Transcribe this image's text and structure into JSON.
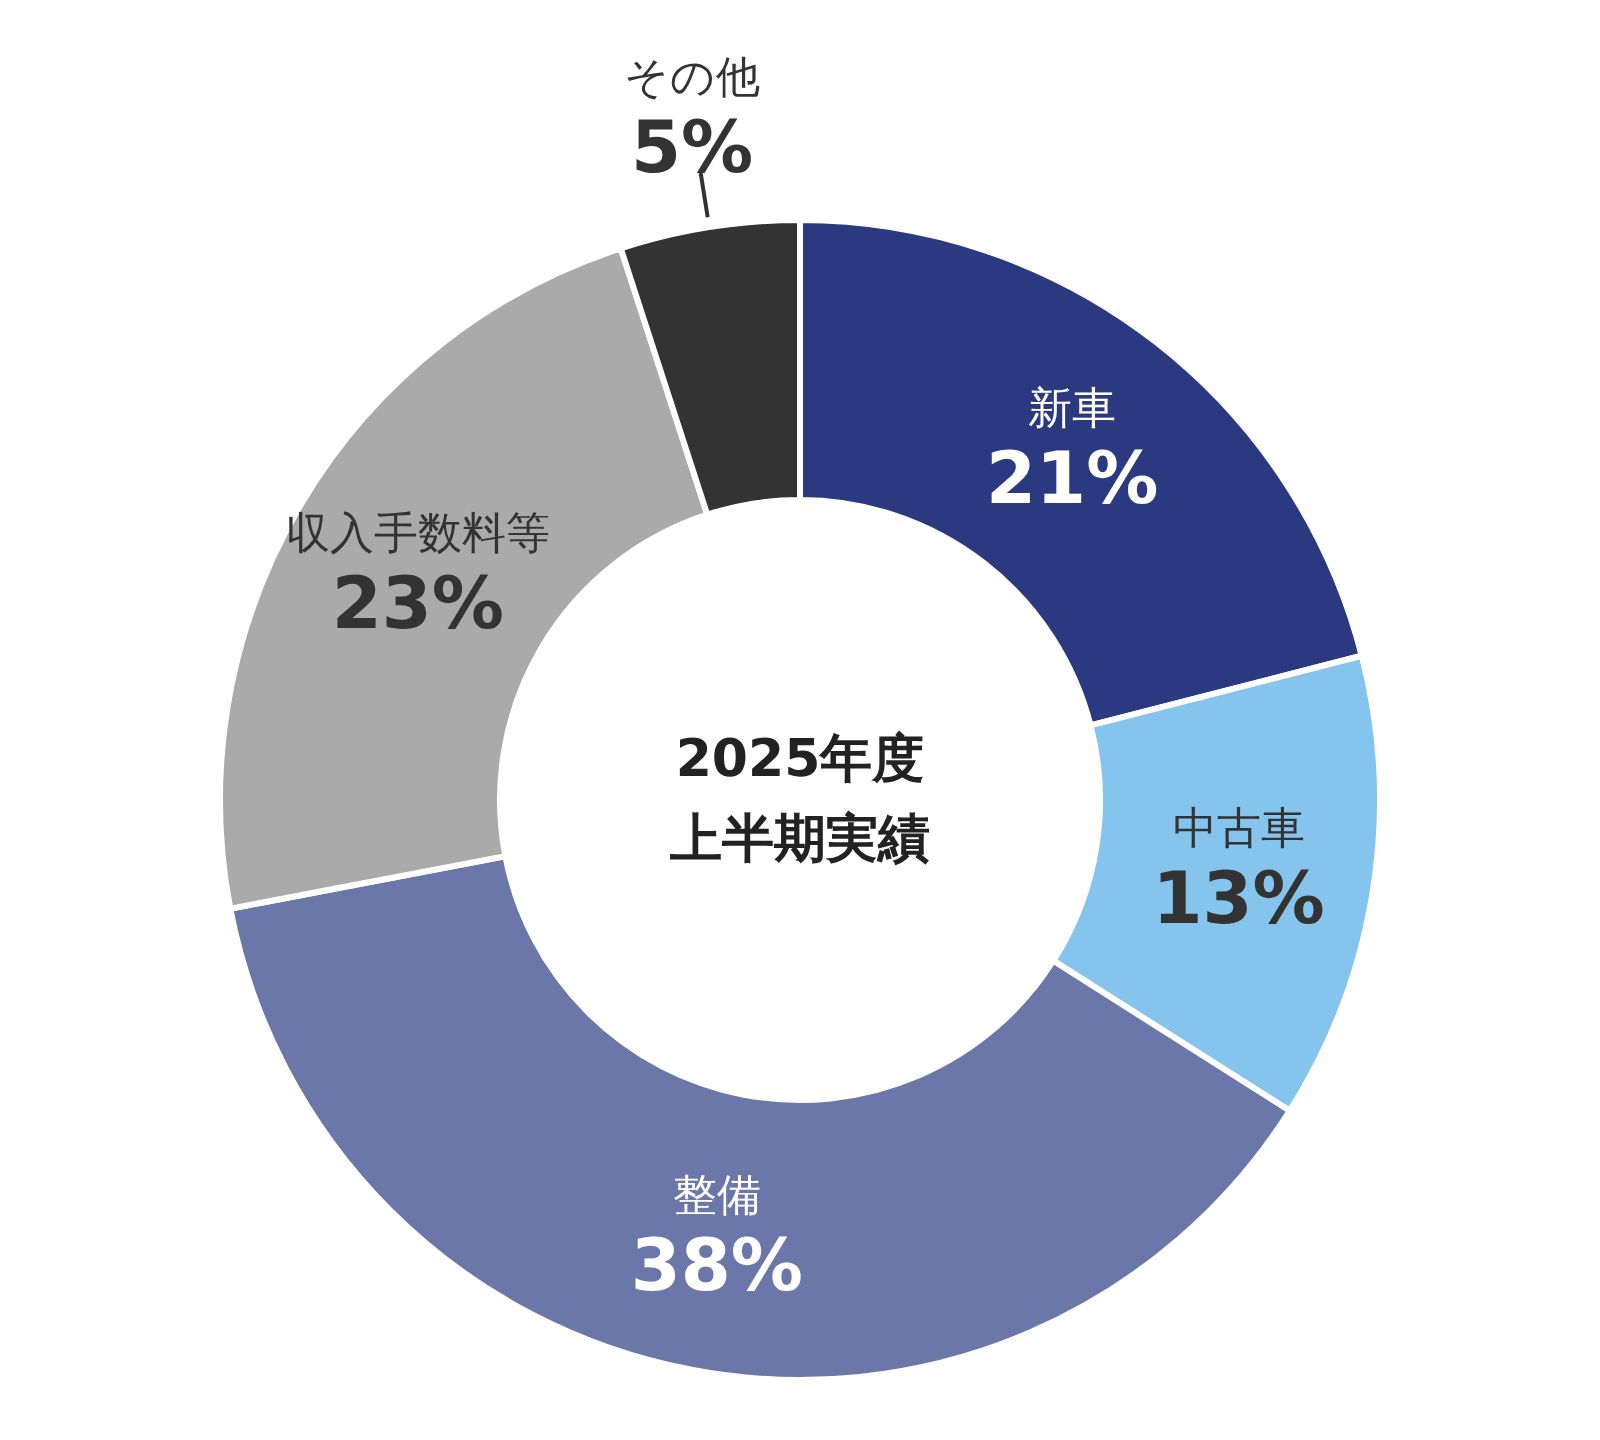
{
  "chart_data": {
    "type": "donut",
    "title": [
      "2025年度",
      "上半期実績"
    ],
    "categories": [
      "新車",
      "中古車",
      "整備",
      "収入手数料等",
      "その他"
    ],
    "values": [
      21,
      13,
      38,
      23,
      5
    ],
    "colors": [
      "#2b3a80",
      "#85c4ec",
      "#6b77a8",
      "#aaaaaa",
      "#333333"
    ],
    "value_labels": [
      "21%",
      "13%",
      "38%",
      "23%",
      "5%"
    ]
  }
}
